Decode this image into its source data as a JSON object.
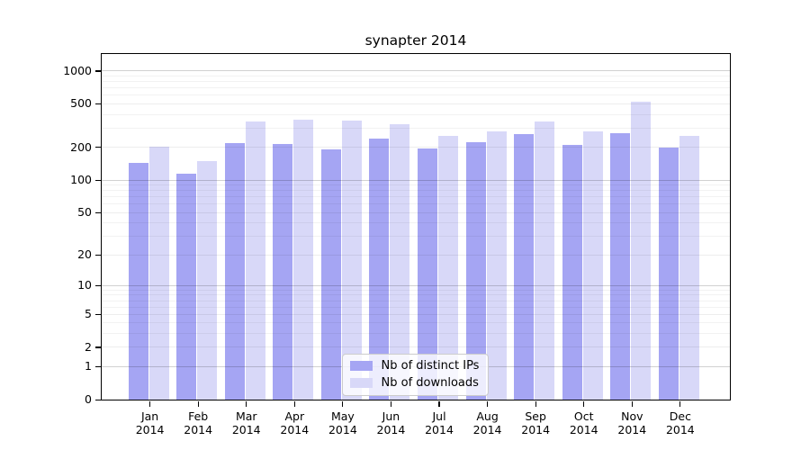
{
  "chart_data": {
    "type": "bar",
    "title": "synapter 2014",
    "categories": [
      "Jan",
      "Feb",
      "Mar",
      "Apr",
      "May",
      "Jun",
      "Jul",
      "Aug",
      "Sep",
      "Oct",
      "Nov",
      "Dec"
    ],
    "category_year": "2014",
    "series": [
      {
        "name": "Nb of distinct IPs",
        "color": "#a5a5f3",
        "values": [
          143,
          114,
          215,
          213,
          191,
          240,
          193,
          219,
          260,
          209,
          266,
          198
        ]
      },
      {
        "name": "Nb of downloads",
        "color": "#d8d8f8",
        "values": [
          202,
          147,
          345,
          352,
          350,
          320,
          252,
          278,
          340,
          276,
          520,
          251
        ]
      }
    ],
    "yscale": "log1p",
    "ylim": [
      0,
      1380
    ],
    "yticks": [
      0,
      1,
      2,
      5,
      10,
      20,
      50,
      100,
      200,
      500,
      1000
    ],
    "xlabel": "",
    "ylabel": "",
    "grid": "horizontal major (decades) and minor gridlines, drawn over bars",
    "legend_position": "lower center"
  }
}
